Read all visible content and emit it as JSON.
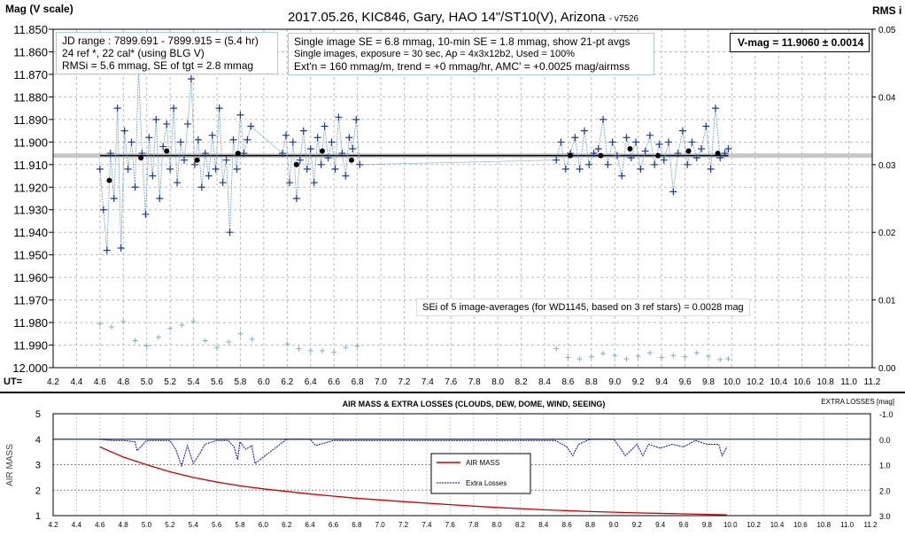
{
  "chart_data": [
    {
      "type": "scatter",
      "title": "2017.05.26,  KIC846,  Gary, HAO 14\"/ST10(V), Arizona",
      "version": "- v7526",
      "ylabel": "Mag (V scale)",
      "y2label": "RMS i",
      "xlabel": "UT=",
      "xlim": [
        4.2,
        11.2
      ],
      "ylim": [
        11.85,
        12.0
      ],
      "y_inverted": true,
      "y2lim": [
        0,
        0.05
      ],
      "grid": true,
      "xticks": [
        "4.2",
        "4.4",
        "4.6",
        "4.8",
        "5.0",
        "5.2",
        "5.4",
        "5.6",
        "5.8",
        "6.0",
        "6.2",
        "6.4",
        "6.6",
        "6.8",
        "7.0",
        "7.2",
        "7.4",
        "7.6",
        "7.8",
        "8.0",
        "8.2",
        "8.4",
        "8.6",
        "8.8",
        "9.0",
        "9.2",
        "9.4",
        "9.6",
        "9.8",
        "10.0",
        "10.2",
        "10.4",
        "10.6",
        "10.8",
        "11.0",
        "11.2"
      ],
      "yticks": [
        "11.850",
        "11.860",
        "11.870",
        "11.880",
        "11.890",
        "11.900",
        "11.910",
        "11.920",
        "11.930",
        "11.940",
        "11.950",
        "11.960",
        "11.970",
        "11.980",
        "11.990",
        "12.000"
      ],
      "y2ticks": [
        "0.00",
        "0.01",
        "0.02",
        "0.03",
        "0.04",
        "0.05"
      ],
      "annotations": {
        "jd": [
          "JD range : 7899.691 - 7899.915 = (5.4 hr)",
          "24 ref *, 22 cal* (using BLG V)",
          "RMSi = 5.6 mmag, SE of tgt = 2.8 mmag"
        ],
        "se": [
          "Single image SE = 6.8 mmag, 10-min SE = 1.8 mmag, show 21-pt avgs",
          "Single images, exposure = 30 sec, Ap = 4x3x12b2, Used = 100%",
          "Ext'n = 160 mmag/m, trend = +0 mmag/hr, AMC' = +0.0025 mag/airmss"
        ],
        "vmag": "V-mag = 11.9060 ± 0.0014",
        "sei": "SEi of 5 image-averages (for WD1145, based on 3 ref stars) = 0.0028 mag"
      },
      "mean_mag": 11.906,
      "mean_range": [
        4.6,
        9.97
      ],
      "series": [
        {
          "kind": "individual",
          "color": "#1f3a8a",
          "x": [
            4.6,
            4.63,
            4.66,
            4.69,
            4.72,
            4.75,
            4.78,
            4.81,
            4.84,
            4.87,
            4.9,
            4.93,
            4.96,
            4.99,
            5.02,
            5.05,
            5.08,
            5.11,
            5.14,
            5.17,
            5.2,
            5.23,
            5.26,
            5.29,
            5.32,
            5.35,
            5.38,
            5.41,
            5.44,
            5.47,
            5.5,
            5.53,
            5.56,
            5.59,
            5.62,
            5.65,
            5.68,
            5.71,
            5.74,
            5.77,
            5.8,
            5.83,
            5.86,
            5.89,
            6.16,
            6.19,
            6.22,
            6.25,
            6.28,
            6.31,
            6.34,
            6.37,
            6.4,
            6.43,
            6.46,
            6.49,
            6.52,
            6.55,
            6.58,
            6.61,
            6.64,
            6.67,
            6.7,
            6.73,
            6.76,
            6.79,
            6.82,
            8.5,
            8.54,
            8.58,
            8.62,
            8.66,
            8.7,
            8.74,
            8.78,
            8.82,
            8.86,
            8.9,
            8.94,
            8.98,
            9.02,
            9.06,
            9.1,
            9.14,
            9.18,
            9.22,
            9.26,
            9.3,
            9.34,
            9.38,
            9.42,
            9.46,
            9.5,
            9.54,
            9.58,
            9.62,
            9.66,
            9.7,
            9.74,
            9.78,
            9.82,
            9.86,
            9.9,
            9.94,
            9.97
          ],
          "y": [
            11.912,
            11.93,
            11.948,
            11.905,
            11.925,
            11.885,
            11.947,
            11.895,
            11.912,
            11.9,
            11.92,
            11.868,
            11.905,
            11.932,
            11.898,
            11.915,
            11.89,
            11.925,
            11.902,
            11.892,
            11.912,
            11.885,
            11.918,
            11.9,
            11.908,
            11.892,
            11.872,
            11.91,
            11.899,
            11.92,
            11.905,
            11.915,
            11.897,
            11.912,
            11.885,
            11.918,
            11.908,
            11.94,
            11.899,
            11.912,
            11.888,
            11.905,
            11.899,
            11.893,
            11.905,
            11.897,
            11.918,
            11.9,
            11.925,
            11.908,
            11.895,
            11.912,
            11.903,
            11.918,
            11.898,
            11.91,
            11.893,
            11.907,
            11.9,
            11.912,
            11.889,
            11.905,
            11.915,
            11.898,
            11.903,
            11.89,
            11.91,
            11.908,
            11.9,
            11.912,
            11.905,
            11.898,
            11.912,
            11.895,
            11.91,
            11.905,
            11.903,
            11.89,
            11.91,
            11.9,
            11.906,
            11.915,
            11.898,
            11.907,
            11.9,
            11.912,
            11.904,
            11.897,
            11.91,
            11.901,
            11.908,
            11.9,
            11.922,
            11.905,
            11.895,
            11.91,
            11.9,
            11.907,
            11.903,
            11.893,
            11.912,
            11.885,
            11.907,
            11.905,
            11.903
          ]
        },
        {
          "kind": "21-pt avgs",
          "color": "#000000",
          "x": [
            4.68,
            4.95,
            5.17,
            5.43,
            5.78,
            6.28,
            6.5,
            6.75,
            8.62,
            8.88,
            9.13,
            9.37,
            9.63,
            9.88
          ],
          "y": [
            11.917,
            11.907,
            11.904,
            11.908,
            11.905,
            11.91,
            11.904,
            11.908,
            11.906,
            11.906,
            11.903,
            11.906,
            11.904,
            11.905
          ]
        },
        {
          "kind": "RMS i",
          "axis": "y2",
          "color": "#7fb2c8",
          "x": [
            4.6,
            4.7,
            4.8,
            4.9,
            5.0,
            5.1,
            5.2,
            5.3,
            5.4,
            5.5,
            5.6,
            5.7,
            5.8,
            5.9,
            6.2,
            6.3,
            6.4,
            6.5,
            6.6,
            6.7,
            6.8,
            8.5,
            8.6,
            8.7,
            8.8,
            8.9,
            9.0,
            9.1,
            9.2,
            9.3,
            9.4,
            9.5,
            9.6,
            9.7,
            9.8,
            9.9,
            9.97
          ],
          "y": [
            0.0065,
            0.006,
            0.0068,
            0.004,
            0.0032,
            0.0045,
            0.0058,
            0.0063,
            0.0068,
            0.004,
            0.003,
            0.0038,
            0.005,
            0.0042,
            0.0035,
            0.0028,
            0.0025,
            0.0025,
            0.0023,
            0.003,
            0.0032,
            0.0028,
            0.0015,
            0.0013,
            0.0016,
            0.0021,
            0.0018,
            0.0013,
            0.0017,
            0.0022,
            0.0015,
            0.0018,
            0.0016,
            0.0022,
            0.0017,
            0.0012,
            0.0013
          ]
        }
      ]
    },
    {
      "type": "line",
      "title": "AIR MASS & EXTRA LOSSES (CLOUDS, DEW, DOME, WIND, SEEING)",
      "ylabel": "AIR MASS",
      "y2label": "EXTRA LOSSES [mag]",
      "xlim": [
        4.2,
        11.2
      ],
      "ylim": [
        1,
        5
      ],
      "y2lim": [
        -1.0,
        3.0
      ],
      "y2_inverted": true,
      "xticks": [
        "4.2",
        "4.4",
        "4.6",
        "4.8",
        "5.0",
        "5.2",
        "5.4",
        "5.6",
        "5.8",
        "6.0",
        "6.2",
        "6.4",
        "6.6",
        "6.8",
        "7.0",
        "7.2",
        "7.4",
        "7.6",
        "7.8",
        "8.0",
        "8.2",
        "8.4",
        "8.6",
        "8.8",
        "9.0",
        "9.2",
        "9.4",
        "9.6",
        "9.8",
        "10.0",
        "10.2",
        "10.4",
        "10.6",
        "10.8",
        "11.0",
        "11.2"
      ],
      "yticks": [
        "1",
        "2",
        "3",
        "4",
        "5"
      ],
      "y2ticks": [
        "-1.0",
        "0.0",
        "1.0",
        "2.0",
        "3.0"
      ],
      "legend": {
        "position": "center",
        "entries": [
          "AIR MASS",
          "Extra Losses"
        ]
      },
      "series": [
        {
          "name": "AIR MASS",
          "color": "#cc0000",
          "x": [
            4.6,
            4.8,
            5.0,
            5.2,
            5.4,
            5.6,
            5.8,
            6.0,
            6.4,
            6.8,
            7.2,
            7.6,
            8.0,
            8.4,
            8.8,
            9.2,
            9.6,
            9.97
          ],
          "y": [
            3.7,
            3.3,
            3.0,
            2.72,
            2.5,
            2.32,
            2.17,
            2.05,
            1.85,
            1.68,
            1.55,
            1.43,
            1.32,
            1.23,
            1.16,
            1.11,
            1.07,
            1.03
          ]
        },
        {
          "name": "Extra Losses",
          "color": "#0000cc",
          "x": [
            4.6,
            4.7,
            4.8,
            4.9,
            4.92,
            5.0,
            5.1,
            5.2,
            5.25,
            5.3,
            5.35,
            5.4,
            5.45,
            5.5,
            5.6,
            5.7,
            5.75,
            5.78,
            5.8,
            5.85,
            5.9,
            5.93,
            6.2,
            6.4,
            6.45,
            6.6,
            6.8,
            8.5,
            8.6,
            8.65,
            8.7,
            8.8,
            9.0,
            9.05,
            9.1,
            9.2,
            9.25,
            9.3,
            9.4,
            9.5,
            9.6,
            9.7,
            9.8,
            9.9,
            9.93,
            9.97
          ],
          "y": [
            0.0,
            0.05,
            0.05,
            0.1,
            0.45,
            0.05,
            0.05,
            0.05,
            0.4,
            1.05,
            0.25,
            0.95,
            0.6,
            0.2,
            0.05,
            0.05,
            0.3,
            0.8,
            0.1,
            0.4,
            0.25,
            0.95,
            0.0,
            0.0,
            0.25,
            0.05,
            0.05,
            0.05,
            0.3,
            0.65,
            0.2,
            0.0,
            0.0,
            0.3,
            0.65,
            0.2,
            0.65,
            0.2,
            0.35,
            0.2,
            0.3,
            0.05,
            0.2,
            0.2,
            0.65,
            0.3
          ]
        }
      ]
    }
  ]
}
